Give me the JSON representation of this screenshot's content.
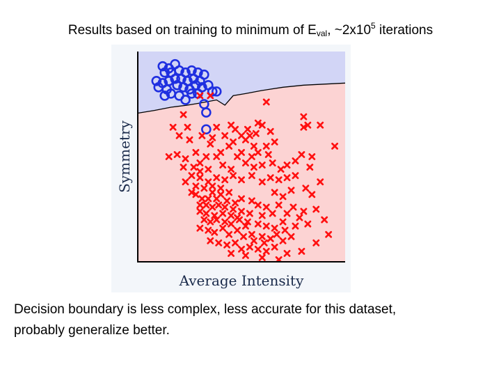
{
  "slide": {
    "title_prefix": "Results based on training to minimum of E",
    "title_sub": "val",
    "title_mid": ", ~2x10",
    "title_sup": "5",
    "title_suffix": " iterations",
    "caption_line1": "Decision boundary is less complex, less accurate for this dataset,",
    "caption_line2": "probably generalize better."
  },
  "colors": {
    "region_circle": "#d2d5f6",
    "region_cross": "#fcd3d3",
    "class_circle": "#1f2fe0",
    "class_cross": "#ff1010",
    "boundary": "#000000",
    "axes_text": "#1a2a4a"
  },
  "chart_data": {
    "type": "scatter",
    "xlabel": "Average Intensity",
    "ylabel": "Symmetry",
    "xlim": [
      0,
      1
    ],
    "ylim": [
      0,
      1
    ],
    "ticks": "none",
    "grid": false,
    "decision_boundary": {
      "x": [
        0,
        0.08,
        0.16,
        0.24,
        0.3,
        0.38,
        0.42,
        0.46,
        0.52,
        0.6,
        0.7,
        0.8,
        0.9,
        1.0
      ],
      "y": [
        0.707,
        0.72,
        0.735,
        0.745,
        0.755,
        0.77,
        0.745,
        0.79,
        0.8,
        0.815,
        0.83,
        0.84,
        0.845,
        0.85
      ],
      "above_class": "circle",
      "below_class": "cross"
    },
    "series": [
      {
        "marker": "circle",
        "points": [
          [
            0.12,
            0.93
          ],
          [
            0.15,
            0.92
          ],
          [
            0.18,
            0.94
          ],
          [
            0.13,
            0.9
          ],
          [
            0.16,
            0.9
          ],
          [
            0.2,
            0.91
          ],
          [
            0.23,
            0.9
          ],
          [
            0.26,
            0.91
          ],
          [
            0.29,
            0.9
          ],
          [
            0.32,
            0.89
          ],
          [
            0.3,
            0.86
          ],
          [
            0.27,
            0.87
          ],
          [
            0.24,
            0.86
          ],
          [
            0.21,
            0.87
          ],
          [
            0.18,
            0.87
          ],
          [
            0.15,
            0.86
          ],
          [
            0.12,
            0.85
          ],
          [
            0.09,
            0.86
          ],
          [
            0.1,
            0.83
          ],
          [
            0.14,
            0.82
          ],
          [
            0.19,
            0.84
          ],
          [
            0.22,
            0.83
          ],
          [
            0.25,
            0.82
          ],
          [
            0.28,
            0.84
          ],
          [
            0.31,
            0.83
          ],
          [
            0.34,
            0.84
          ],
          [
            0.36,
            0.81
          ],
          [
            0.26,
            0.8
          ],
          [
            0.2,
            0.79
          ],
          [
            0.16,
            0.8
          ],
          [
            0.13,
            0.79
          ],
          [
            0.38,
            0.81
          ],
          [
            0.29,
            0.8
          ],
          [
            0.23,
            0.77
          ],
          [
            0.32,
            0.75
          ],
          [
            0.33,
            0.71
          ],
          [
            0.33,
            0.63
          ]
        ]
      },
      {
        "marker": "cross",
        "points": [
          [
            0.35,
            0.79
          ],
          [
            0.3,
            0.79
          ],
          [
            0.22,
            0.7
          ],
          [
            0.62,
            0.76
          ],
          [
            0.8,
            0.69
          ],
          [
            0.82,
            0.65
          ],
          [
            0.88,
            0.65
          ],
          [
            0.8,
            0.64
          ],
          [
            0.17,
            0.64
          ],
          [
            0.24,
            0.64
          ],
          [
            0.2,
            0.6
          ],
          [
            0.25,
            0.58
          ],
          [
            0.38,
            0.64
          ],
          [
            0.45,
            0.65
          ],
          [
            0.47,
            0.63
          ],
          [
            0.53,
            0.63
          ],
          [
            0.58,
            0.66
          ],
          [
            0.6,
            0.65
          ],
          [
            0.64,
            0.62
          ],
          [
            0.57,
            0.61
          ],
          [
            0.54,
            0.6
          ],
          [
            0.5,
            0.6
          ],
          [
            0.42,
            0.6
          ],
          [
            0.36,
            0.59
          ],
          [
            0.31,
            0.6
          ],
          [
            0.35,
            0.56
          ],
          [
            0.44,
            0.55
          ],
          [
            0.46,
            0.57
          ],
          [
            0.52,
            0.58
          ],
          [
            0.56,
            0.55
          ],
          [
            0.62,
            0.55
          ],
          [
            0.66,
            0.57
          ],
          [
            0.63,
            0.51
          ],
          [
            0.58,
            0.52
          ],
          [
            0.55,
            0.5
          ],
          [
            0.5,
            0.52
          ],
          [
            0.48,
            0.5
          ],
          [
            0.4,
            0.52
          ],
          [
            0.38,
            0.5
          ],
          [
            0.33,
            0.5
          ],
          [
            0.28,
            0.52
          ],
          [
            0.23,
            0.49
          ],
          [
            0.19,
            0.51
          ],
          [
            0.15,
            0.5
          ],
          [
            0.22,
            0.45
          ],
          [
            0.27,
            0.45
          ],
          [
            0.3,
            0.47
          ],
          [
            0.34,
            0.44
          ],
          [
            0.41,
            0.46
          ],
          [
            0.45,
            0.44
          ],
          [
            0.52,
            0.47
          ],
          [
            0.56,
            0.45
          ],
          [
            0.6,
            0.46
          ],
          [
            0.65,
            0.47
          ],
          [
            0.69,
            0.44
          ],
          [
            0.72,
            0.46
          ],
          [
            0.76,
            0.48
          ],
          [
            0.79,
            0.51
          ],
          [
            0.84,
            0.5
          ],
          [
            0.83,
            0.45
          ],
          [
            0.76,
            0.41
          ],
          [
            0.72,
            0.4
          ],
          [
            0.68,
            0.39
          ],
          [
            0.64,
            0.4
          ],
          [
            0.6,
            0.38
          ],
          [
            0.55,
            0.41
          ],
          [
            0.5,
            0.39
          ],
          [
            0.46,
            0.41
          ],
          [
            0.42,
            0.39
          ],
          [
            0.38,
            0.4
          ],
          [
            0.34,
            0.38
          ],
          [
            0.3,
            0.4
          ],
          [
            0.26,
            0.41
          ],
          [
            0.23,
            0.38
          ],
          [
            0.28,
            0.36
          ],
          [
            0.32,
            0.35
          ],
          [
            0.36,
            0.33
          ],
          [
            0.4,
            0.35
          ],
          [
            0.44,
            0.33
          ],
          [
            0.28,
            0.32
          ],
          [
            0.31,
            0.3
          ],
          [
            0.34,
            0.3
          ],
          [
            0.38,
            0.3
          ],
          [
            0.3,
            0.27
          ],
          [
            0.33,
            0.27
          ],
          [
            0.36,
            0.26
          ],
          [
            0.39,
            0.27
          ],
          [
            0.42,
            0.26
          ],
          [
            0.47,
            0.28
          ],
          [
            0.5,
            0.3
          ],
          [
            0.55,
            0.29
          ],
          [
            0.58,
            0.27
          ],
          [
            0.62,
            0.26
          ],
          [
            0.68,
            0.27
          ],
          [
            0.75,
            0.26
          ],
          [
            0.8,
            0.24
          ],
          [
            0.86,
            0.25
          ],
          [
            0.72,
            0.23
          ],
          [
            0.65,
            0.23
          ],
          [
            0.6,
            0.22
          ],
          [
            0.54,
            0.23
          ],
          [
            0.5,
            0.24
          ],
          [
            0.45,
            0.22
          ],
          [
            0.41,
            0.23
          ],
          [
            0.37,
            0.22
          ],
          [
            0.33,
            0.23
          ],
          [
            0.3,
            0.24
          ],
          [
            0.32,
            0.2
          ],
          [
            0.35,
            0.19
          ],
          [
            0.38,
            0.2
          ],
          [
            0.42,
            0.19
          ],
          [
            0.45,
            0.18
          ],
          [
            0.49,
            0.2
          ],
          [
            0.53,
            0.19
          ],
          [
            0.58,
            0.18
          ],
          [
            0.62,
            0.17
          ],
          [
            0.66,
            0.16
          ],
          [
            0.7,
            0.19
          ],
          [
            0.76,
            0.17
          ],
          [
            0.82,
            0.18
          ],
          [
            0.3,
            0.16
          ],
          [
            0.34,
            0.15
          ],
          [
            0.37,
            0.14
          ],
          [
            0.41,
            0.16
          ],
          [
            0.44,
            0.13
          ],
          [
            0.48,
            0.15
          ],
          [
            0.51,
            0.12
          ],
          [
            0.55,
            0.13
          ],
          [
            0.6,
            0.12
          ],
          [
            0.64,
            0.11
          ],
          [
            0.7,
            0.1
          ],
          [
            0.74,
            0.12
          ],
          [
            0.35,
            0.1
          ],
          [
            0.39,
            0.09
          ],
          [
            0.43,
            0.08
          ],
          [
            0.47,
            0.09
          ],
          [
            0.5,
            0.06
          ],
          [
            0.54,
            0.07
          ],
          [
            0.58,
            0.06
          ],
          [
            0.62,
            0.05
          ],
          [
            0.66,
            0.07
          ],
          [
            0.72,
            0.04
          ],
          [
            0.45,
            0.04
          ],
          [
            0.52,
            0.03
          ],
          [
            0.6,
            0.02
          ],
          [
            0.68,
            0.01
          ],
          [
            0.3,
            0.43
          ],
          [
            0.26,
            0.33
          ],
          [
            0.36,
            0.36
          ],
          [
            0.4,
            0.32
          ],
          [
            0.43,
            0.29
          ],
          [
            0.46,
            0.25
          ],
          [
            0.48,
            0.21
          ],
          [
            0.52,
            0.17
          ],
          [
            0.56,
            0.1
          ],
          [
            0.61,
            0.09
          ],
          [
            0.67,
            0.13
          ],
          [
            0.71,
            0.15
          ],
          [
            0.78,
            0.21
          ],
          [
            0.9,
            0.2
          ],
          [
            0.92,
            0.13
          ],
          [
            0.86,
            0.09
          ],
          [
            0.79,
            0.05
          ],
          [
            0.95,
            0.55
          ],
          [
            0.88,
            0.38
          ],
          [
            0.84,
            0.32
          ],
          [
            0.81,
            0.35
          ],
          [
            0.74,
            0.34
          ],
          [
            0.7,
            0.31
          ],
          [
            0.66,
            0.33
          ]
        ]
      }
    ]
  }
}
